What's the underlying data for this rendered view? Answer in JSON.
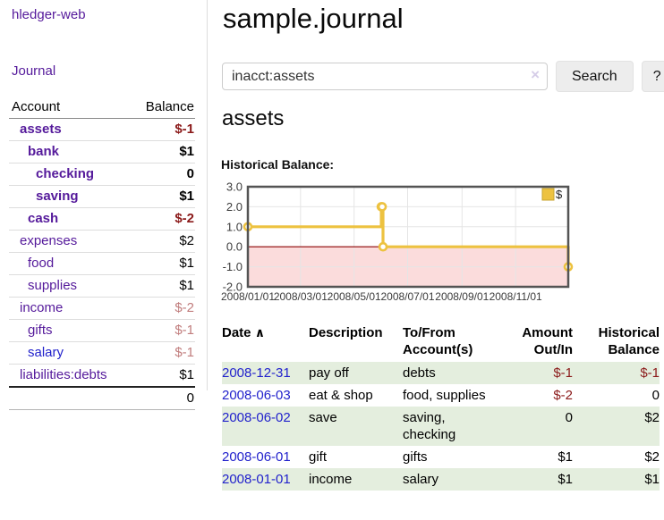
{
  "app": {
    "brand": "hledger-web",
    "nav_journal": "Journal"
  },
  "sidebar": {
    "header": {
      "account": "Account",
      "balance": "Balance"
    },
    "accounts": [
      {
        "name": "assets",
        "depth": 1,
        "balance": "$-1",
        "bold": true,
        "balance_tone": "negative"
      },
      {
        "name": "bank",
        "depth": 2,
        "balance": "$1",
        "bold": true,
        "balance_tone": "normal"
      },
      {
        "name": "checking",
        "depth": 3,
        "balance": "0",
        "bold": true,
        "balance_tone": "normal"
      },
      {
        "name": "saving",
        "depth": 3,
        "balance": "$1",
        "bold": true,
        "balance_tone": "normal"
      },
      {
        "name": "cash",
        "depth": 2,
        "balance": "$-2",
        "bold": true,
        "balance_tone": "negative"
      },
      {
        "name": "expenses",
        "depth": 1,
        "balance": "$2",
        "bold": false,
        "balance_tone": "normal"
      },
      {
        "name": "food",
        "depth": 2,
        "balance": "$1",
        "bold": false,
        "balance_tone": "normal"
      },
      {
        "name": "supplies",
        "depth": 2,
        "balance": "$1",
        "bold": false,
        "balance_tone": "normal"
      },
      {
        "name": "income",
        "depth": 1,
        "balance": "$-2",
        "bold": false,
        "balance_tone": "negative-light"
      },
      {
        "name": "gifts",
        "depth": 2,
        "balance": "$-1",
        "bold": false,
        "balance_tone": "negative-light"
      },
      {
        "name": "salary",
        "depth": 2,
        "balance": "$-1",
        "bold": false,
        "balance_tone": "negative-light",
        "link_tone": "blue"
      },
      {
        "name": "liabilities:debts",
        "depth": 1,
        "balance": "$1",
        "bold": false,
        "balance_tone": "normal"
      }
    ],
    "total": "0"
  },
  "header": {
    "title": "sample.journal"
  },
  "search": {
    "query": "inacct:assets",
    "clear_icon": "×",
    "button_label": "Search",
    "help_label": "?"
  },
  "account_page": {
    "heading": "assets",
    "chart_title": "Historical Balance:"
  },
  "chart_data": {
    "type": "line",
    "style": "step",
    "title": "Historical Balance:",
    "series": [
      {
        "name": "$",
        "points": [
          [
            "2008-01-01",
            1
          ],
          [
            "2008-06-01",
            2
          ],
          [
            "2008-06-02",
            2
          ],
          [
            "2008-06-03",
            0
          ],
          [
            "2008-12-31",
            -1
          ]
        ]
      }
    ],
    "xlim": [
      "2008-01-01",
      "2008-12-31"
    ],
    "ylim": [
      -2.0,
      3.0
    ],
    "y_ticks": [
      {
        "v": 3,
        "label": "3.0"
      },
      {
        "v": 2,
        "label": "2.0"
      },
      {
        "v": 1,
        "label": "1.0"
      },
      {
        "v": 0,
        "label": "0.0"
      },
      {
        "v": -1,
        "label": "-1.0"
      },
      {
        "v": -2,
        "label": "-2.0"
      }
    ],
    "x_ticks": [
      {
        "date": "2008-01-01",
        "label": "2008/01/01"
      },
      {
        "date": "2008-03-01",
        "label": "2008/03/01"
      },
      {
        "date": "2008-05-01",
        "label": "2008/05/01"
      },
      {
        "date": "2008-07-01",
        "label": "2008/07/01"
      },
      {
        "date": "2008-09-01",
        "label": "2008/09/01"
      },
      {
        "date": "2008-11-01",
        "label": "2008/11/01"
      }
    ],
    "legend": {
      "label": "$",
      "position": "top-right"
    },
    "grid": true,
    "zero_line": true,
    "negative_region_shaded": true,
    "colors": {
      "line": "#edc240",
      "marker_fill": "#ffffff",
      "zero_line": "#8b0000",
      "negative_fill": "#fbdcdc",
      "border": "#545454",
      "grid": "#e5e5e5",
      "tick_text": "#3c3c3c"
    }
  },
  "transactions": {
    "columns": {
      "date": "Date",
      "date_sort_icon": "∧",
      "description": "Description",
      "tofrom_line1": "To/From",
      "tofrom_line2": "Account(s)",
      "amount_line1": "Amount",
      "amount_line2": "Out/In",
      "balance_line1": "Historical",
      "balance_line2": "Balance"
    },
    "rows": [
      {
        "date": "2008-12-31",
        "description": "pay off",
        "accounts": "debts",
        "amount": "$-1",
        "amount_negative": true,
        "balance": "$-1",
        "balance_negative": true,
        "shaded": true
      },
      {
        "date": "2008-06-03",
        "description": "eat & shop",
        "accounts": "food, supplies",
        "amount": "$-2",
        "amount_negative": true,
        "balance": "0",
        "balance_negative": false,
        "shaded": false
      },
      {
        "date": "2008-06-02",
        "description": "save",
        "accounts": "saving, checking",
        "amount": "0",
        "amount_negative": false,
        "balance": "$2",
        "balance_negative": false,
        "shaded": true
      },
      {
        "date": "2008-06-01",
        "description": "gift",
        "accounts": "gifts",
        "amount": "$1",
        "amount_negative": false,
        "balance": "$2",
        "balance_negative": false,
        "shaded": false
      },
      {
        "date": "2008-01-01",
        "description": "income",
        "accounts": "salary",
        "amount": "$1",
        "amount_negative": false,
        "balance": "$1",
        "balance_negative": false,
        "shaded": true
      }
    ]
  },
  "colors": {
    "accent_purple": "#551a9b",
    "link_blue": "#2222cc",
    "negative_dark": "#8b1a1a",
    "negative_light": "#c17d7d",
    "row_green": "#e4eede",
    "series_yellow": "#edc240"
  }
}
